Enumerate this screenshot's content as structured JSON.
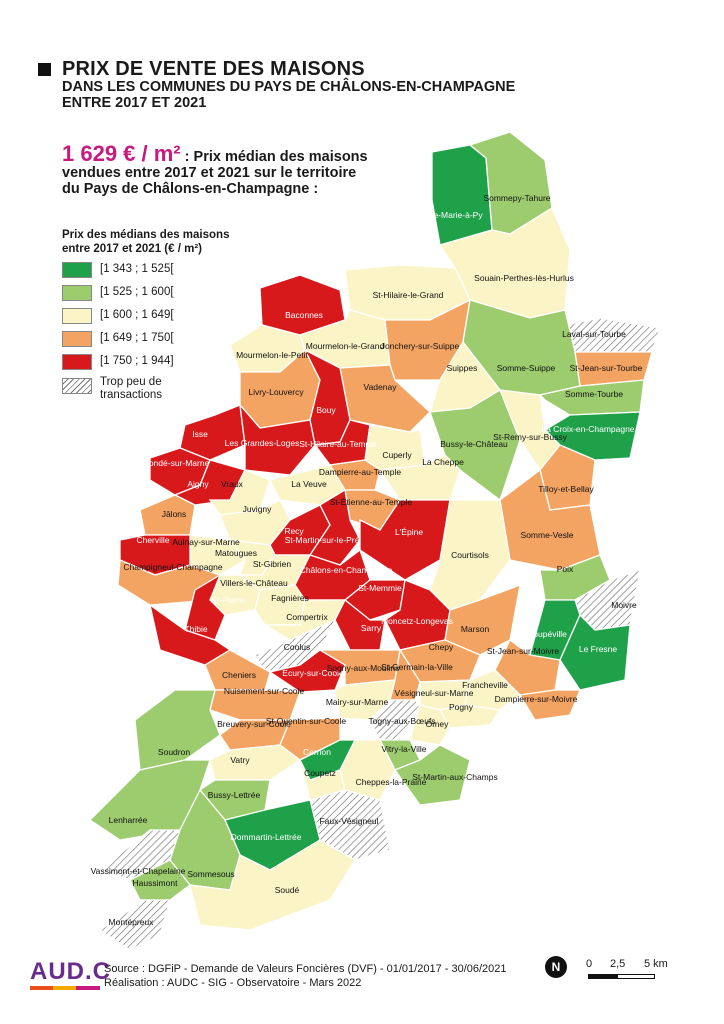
{
  "title": {
    "main": "PRIX DE VENTE DES MAISONS",
    "line2": "DANS LES COMMUNES DU PAYS DE CHÂLONS-EN-CHAMPAGNE",
    "line3": "ENTRE 2017 ET 2021"
  },
  "headline": {
    "value": "1 629 € / m²",
    "line1": " : Prix médian des maisons",
    "line2": "vendues entre 2017 et 2021 sur le territoire",
    "line3": "du Pays de Châlons-en-Champagne :"
  },
  "legend": {
    "title_line1": "Prix des médians des maisons",
    "title_line2": "entre 2017 et 2021  (€ / m²)",
    "classes": [
      {
        "label": "[1 343 ; 1 525[",
        "color": "#1fa14a"
      },
      {
        "label": "[1 525 ; 1 600[",
        "color": "#9ccc6e"
      },
      {
        "label": "[1 600 ; 1 649[",
        "color": "#fbf4c6"
      },
      {
        "label": "[1 649 ; 1 750[",
        "color": "#f4a462"
      },
      {
        "label": "[1 750 ; 1 944]",
        "color": "#d7191c"
      }
    ],
    "hatch_label_line1": "Trop peu de",
    "hatch_label_line2": "transactions"
  },
  "communes": [
    {
      "name": "Ste-Marie-à-Py",
      "class": 0
    },
    {
      "name": "Sommepy-Tahure",
      "class": 1
    },
    {
      "name": "Souain-Perthes-lès-Hurlus",
      "class": 2
    },
    {
      "name": "St-Hilaire-le-Grand",
      "class": 2
    },
    {
      "name": "Baconnes",
      "class": 4
    },
    {
      "name": "Mourmelon-le-Grand",
      "class": 2
    },
    {
      "name": "Mourmelon-le-Petit",
      "class": 2
    },
    {
      "name": "Jonchery-sur-Suippe",
      "class": 3
    },
    {
      "name": "Laval-sur-Tourbe",
      "class": 5
    },
    {
      "name": "St-Jean-sur-Tourbe",
      "class": 3
    },
    {
      "name": "Somme-Suippe",
      "class": 1
    },
    {
      "name": "Suippes",
      "class": 2
    },
    {
      "name": "Somme-Tourbe",
      "class": 1
    },
    {
      "name": "Livry-Louvercy",
      "class": 3
    },
    {
      "name": "Vadenay",
      "class": 3
    },
    {
      "name": "Bouy",
      "class": 4
    },
    {
      "name": "La Croix-en-Champagne",
      "class": 0
    },
    {
      "name": "Isse",
      "class": 4
    },
    {
      "name": "Les Grandes-Loges",
      "class": 4
    },
    {
      "name": "St-Hilaire-au-Temple",
      "class": 4
    },
    {
      "name": "Bussy-le-Château",
      "class": 1
    },
    {
      "name": "St-Remy-sur-Bussy",
      "class": 2
    },
    {
      "name": "Cuperly",
      "class": 2
    },
    {
      "name": "Condé-sur-Marne",
      "class": 4
    },
    {
      "name": "Dampierre-au-Temple",
      "class": 3
    },
    {
      "name": "La Cheppe",
      "class": 2
    },
    {
      "name": "Tilloy-et-Bellay",
      "class": 3
    },
    {
      "name": "Aigny",
      "class": 4
    },
    {
      "name": "Vraux",
      "class": 2
    },
    {
      "name": "La Veuve",
      "class": 2
    },
    {
      "name": "St-Étienne-au-Temple",
      "class": 3
    },
    {
      "name": "Jâlons",
      "class": 3
    },
    {
      "name": "Juvigny",
      "class": 2
    },
    {
      "name": "Recy",
      "class": 4
    },
    {
      "name": "St-Martin-sur-le-Pré",
      "class": 4
    },
    {
      "name": "L'Épine",
      "class": 4
    },
    {
      "name": "Somme-Vesle",
      "class": 3
    },
    {
      "name": "Aulnay-sur-Marne",
      "class": 2
    },
    {
      "name": "Cherville",
      "class": 4
    },
    {
      "name": "Matougues",
      "class": 2
    },
    {
      "name": "Courtisols",
      "class": 2
    },
    {
      "name": "Champigneul-Champagne",
      "class": 3
    },
    {
      "name": "St-Gibrien",
      "class": 2
    },
    {
      "name": "Châlons-en-Champagne",
      "class": 4
    },
    {
      "name": "Villers-le-Château",
      "class": 2
    },
    {
      "name": "Poix",
      "class": 1
    },
    {
      "name": "St-Pierre",
      "class": 4
    },
    {
      "name": "Fagnières",
      "class": 2
    },
    {
      "name": "St-Memmie",
      "class": 4
    },
    {
      "name": "Moivre",
      "class": 5
    },
    {
      "name": "Compertrix",
      "class": 2
    },
    {
      "name": "Thibie",
      "class": 4
    },
    {
      "name": "Sarry",
      "class": 4
    },
    {
      "name": "Moncetz-Longevas",
      "class": 4
    },
    {
      "name": "Marson",
      "class": 3
    },
    {
      "name": "Coupéville",
      "class": 0
    },
    {
      "name": "Coolus",
      "class": 5
    },
    {
      "name": "Chepy",
      "class": 3
    },
    {
      "name": "St-Jean-sur-Moivre",
      "class": 3
    },
    {
      "name": "Le Fresne",
      "class": 0
    },
    {
      "name": "Ecury-sur-Coole",
      "class": 4
    },
    {
      "name": "Sogny-aux-Moulins",
      "class": 3
    },
    {
      "name": "St-Germain-la-Ville",
      "class": 3
    },
    {
      "name": "Cheniers",
      "class": 3
    },
    {
      "name": "Francheville",
      "class": 2
    },
    {
      "name": "Dampierre-sur-Moivre",
      "class": 3
    },
    {
      "name": "Nuisement-sur-Coole",
      "class": 3
    },
    {
      "name": "Vésigneul-sur-Marne",
      "class": 2
    },
    {
      "name": "Mairy-sur-Marne",
      "class": 2
    },
    {
      "name": "Pogny",
      "class": 2
    },
    {
      "name": "Breuvery-sur-Coole",
      "class": 3
    },
    {
      "name": "St-Quentin-sur-Coole",
      "class": 3
    },
    {
      "name": "Togny-aux-Bœufs",
      "class": 5
    },
    {
      "name": "Omey",
      "class": 2
    },
    {
      "name": "Soudron",
      "class": 1
    },
    {
      "name": "Cernon",
      "class": 0
    },
    {
      "name": "Vitry-la-Ville",
      "class": 1
    },
    {
      "name": "Vatry",
      "class": 2
    },
    {
      "name": "Coupetz",
      "class": 2
    },
    {
      "name": "Cheppes-la-Prairie",
      "class": 2
    },
    {
      "name": "St-Martin-aux-Champs",
      "class": 1
    },
    {
      "name": "Bussy-Lettrée",
      "class": 1
    },
    {
      "name": "Lenharrée",
      "class": 1
    },
    {
      "name": "Faux-Vésigneul",
      "class": 5
    },
    {
      "name": "Vassimont-et-Chapelaine",
      "class": 5
    },
    {
      "name": "Dommartin-Lettrée",
      "class": 0
    },
    {
      "name": "Sommesous",
      "class": 1
    },
    {
      "name": "Haussimont",
      "class": 1
    },
    {
      "name": "Soudé",
      "class": 2
    },
    {
      "name": "Montépreux",
      "class": 5
    }
  ],
  "footer": {
    "logo": "AUD.C",
    "source_line1": "Source : DGFiP - Demande de Valeurs Foncières (DVF) - 01/01/2017 - 30/06/2021",
    "source_line2": "Réalisation : AUDC - SIG - Observatoire - Mars 2022",
    "north": "N",
    "scale_labels": [
      "0",
      "2,5",
      "5 km"
    ]
  }
}
